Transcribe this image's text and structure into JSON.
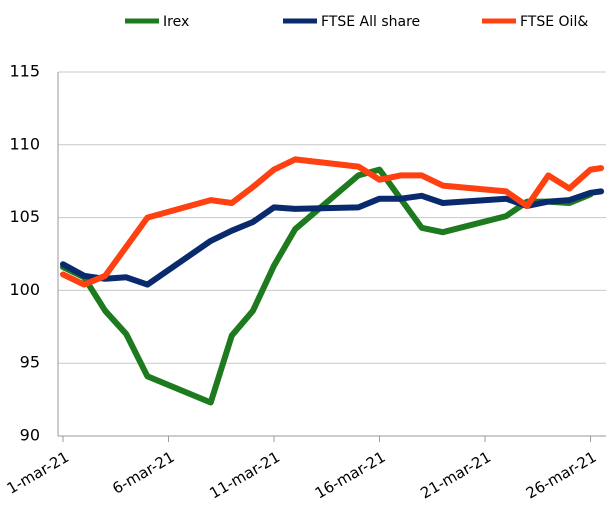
{
  "chart_data": {
    "type": "line",
    "title": "",
    "xlabel": "",
    "ylabel": "",
    "ylim": [
      90,
      115
    ],
    "yticks": [
      "90",
      "95",
      "100",
      "105",
      "110",
      "115"
    ],
    "x_tick_labels": [
      "1-mar-21",
      "6-mar-21",
      "11-mar-21",
      "16-mar-21",
      "21-mar-21",
      "26-mar-21"
    ],
    "grid": "horizontal",
    "legend_position": "top",
    "x": [
      "2021-03-01",
      "2021-03-02",
      "2021-03-03",
      "2021-03-04",
      "2021-03-05",
      "2021-03-06",
      "2021-03-07",
      "2021-03-08",
      "2021-03-09",
      "2021-03-10",
      "2021-03-11",
      "2021-03-12",
      "2021-03-13",
      "2021-03-14",
      "2021-03-15",
      "2021-03-16",
      "2021-03-17",
      "2021-03-18",
      "2021-03-19",
      "2021-03-20",
      "2021-03-21",
      "2021-03-22",
      "2021-03-23",
      "2021-03-24",
      "2021-03-25",
      "2021-03-26",
      "2021-03-27",
      "2021-03-28"
    ],
    "series": [
      {
        "name": "Irex",
        "color": "#1e7a1e",
        "points": [
          [
            0,
            101.6
          ],
          [
            1,
            100.9
          ],
          [
            2,
            98.6
          ],
          [
            3,
            97.0
          ],
          [
            4,
            94.1
          ],
          [
            7,
            92.3
          ],
          [
            8,
            96.9
          ],
          [
            9,
            98.6
          ],
          [
            10,
            101.7
          ],
          [
            11,
            104.2
          ],
          [
            14,
            107.9
          ],
          [
            15,
            108.3
          ],
          [
            17,
            104.3
          ],
          [
            18,
            104.0
          ],
          [
            21,
            105.1
          ],
          [
            22,
            106.1
          ],
          [
            23,
            106.1
          ],
          [
            24,
            106.0
          ],
          [
            25,
            106.6
          ]
        ]
      },
      {
        "name": "FTSE All share",
        "color": "#0a2a6e",
        "points": [
          [
            0,
            101.8
          ],
          [
            1,
            101.0
          ],
          [
            2,
            100.8
          ],
          [
            3,
            100.9
          ],
          [
            4,
            100.4
          ],
          [
            7,
            103.4
          ],
          [
            8,
            104.1
          ],
          [
            9,
            104.7
          ],
          [
            10,
            105.7
          ],
          [
            11,
            105.6
          ],
          [
            14,
            105.7
          ],
          [
            15,
            106.3
          ],
          [
            16,
            106.3
          ],
          [
            17,
            106.5
          ],
          [
            18,
            106.0
          ],
          [
            21,
            106.3
          ],
          [
            22,
            105.8
          ],
          [
            23,
            106.1
          ],
          [
            24,
            106.2
          ],
          [
            25,
            106.7
          ],
          [
            25.5,
            106.8
          ]
        ]
      },
      {
        "name": "FTSE Oil&",
        "color": "#ff4010",
        "points": [
          [
            0,
            101.1
          ],
          [
            1,
            100.4
          ],
          [
            2,
            101.0
          ],
          [
            3,
            103.0
          ],
          [
            4,
            105.0
          ],
          [
            7,
            106.2
          ],
          [
            8,
            106.0
          ],
          [
            9,
            107.1
          ],
          [
            10,
            108.3
          ],
          [
            11,
            109.0
          ],
          [
            14,
            108.5
          ],
          [
            15,
            107.6
          ],
          [
            16,
            107.9
          ],
          [
            17,
            107.9
          ],
          [
            18,
            107.2
          ],
          [
            21,
            106.8
          ],
          [
            22,
            105.8
          ],
          [
            23,
            107.9
          ],
          [
            24,
            107.0
          ],
          [
            25,
            108.3
          ],
          [
            25.5,
            108.4
          ]
        ]
      }
    ]
  }
}
